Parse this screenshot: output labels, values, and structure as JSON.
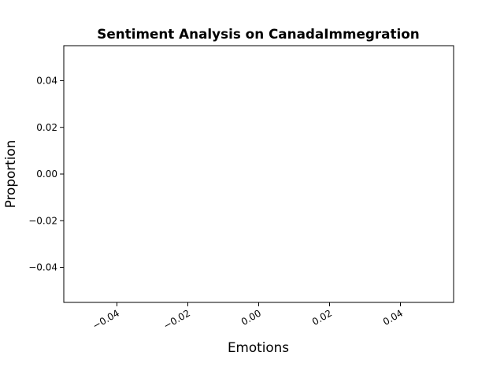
{
  "chart_data": {
    "type": "bar",
    "title": "Sentiment Analysis on CanadaImmegration",
    "xlabel": "Emotions",
    "ylabel": "Proportion",
    "categories": [],
    "values": [],
    "xlim": [
      -0.055,
      0.055
    ],
    "ylim": [
      -0.055,
      0.055
    ],
    "x_ticks": [
      -0.04,
      -0.02,
      0.0,
      0.02,
      0.04
    ],
    "x_tick_labels": [
      "−0.04",
      "−0.02",
      "0.00",
      "0.02",
      "0.04"
    ],
    "y_ticks": [
      -0.04,
      -0.02,
      0.0,
      0.02,
      0.04
    ],
    "y_tick_labels": [
      "−0.04",
      "−0.02",
      "0.00",
      "0.02",
      "0.04"
    ],
    "x_tick_rotation": 30,
    "grid": false,
    "legend": "none",
    "colors": {
      "axis": "#000000",
      "background": "#ffffff"
    }
  }
}
